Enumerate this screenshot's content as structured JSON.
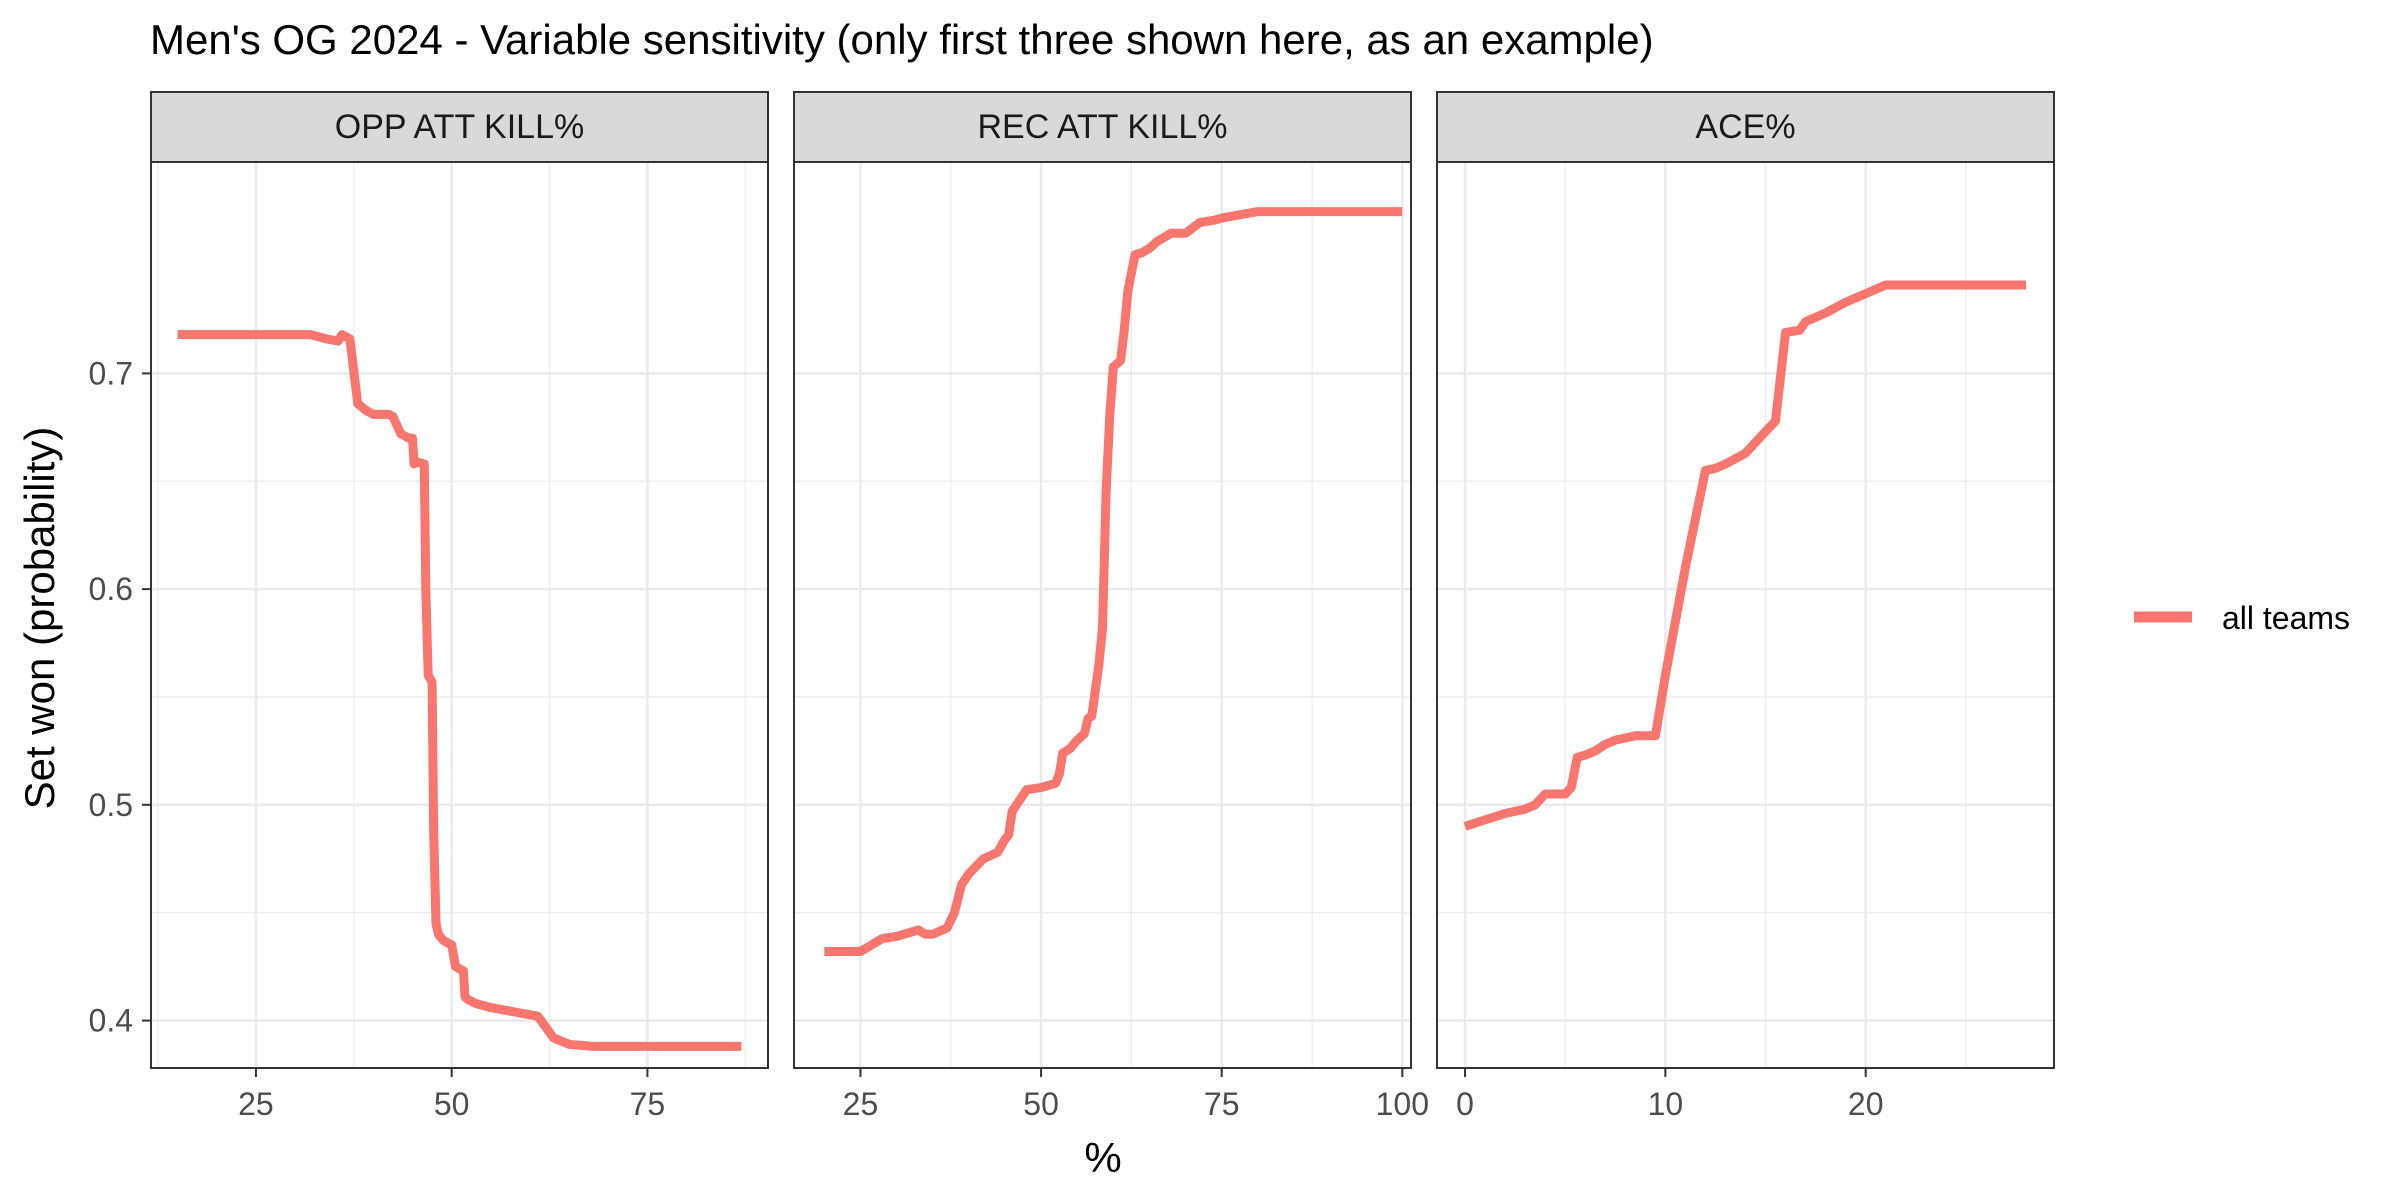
{
  "chart_data": {
    "type": "line",
    "title": "Men's OG 2024 - Variable sensitivity (only first three shown here, as an example)",
    "xlabel": "%",
    "ylabel": "Set won (probability)",
    "ylim": [
      0.378,
      0.798
    ],
    "y_ticks": [
      0.4,
      0.5,
      0.6,
      0.7
    ],
    "y_tick_labels": [
      "0.4",
      "0.5",
      "0.6",
      "0.7"
    ],
    "grid": true,
    "legend_position": "right",
    "series_color": "#F8766D",
    "series_name": "all teams",
    "panels": [
      {
        "strip": "OPP ATT KILL%",
        "xlim": [
          11.6,
          90.4
        ],
        "x_ticks": [
          25,
          50,
          75
        ],
        "x_tick_labels": [
          "25",
          "50",
          "75"
        ],
        "x": [
          15,
          20,
          25,
          30,
          32,
          34,
          35.5,
          36,
          37,
          38,
          39,
          40,
          42,
          42.5,
          43,
          43.5,
          44.5,
          45,
          45.2,
          45.5,
          46.5,
          46.7,
          47,
          47.5,
          47.7,
          48,
          48.3,
          48.5,
          49,
          50,
          50.5,
          51,
          51.5,
          51.7,
          52,
          53,
          55,
          58,
          61,
          63,
          65,
          68,
          70,
          75,
          80,
          87
        ],
        "y": [
          0.718,
          0.718,
          0.718,
          0.718,
          0.718,
          0.716,
          0.715,
          0.718,
          0.716,
          0.686,
          0.683,
          0.681,
          0.681,
          0.68,
          0.676,
          0.672,
          0.67,
          0.67,
          0.658,
          0.659,
          0.658,
          0.6,
          0.56,
          0.557,
          0.487,
          0.445,
          0.44,
          0.439,
          0.437,
          0.435,
          0.425,
          0.424,
          0.423,
          0.411,
          0.41,
          0.408,
          0.406,
          0.404,
          0.402,
          0.392,
          0.389,
          0.388,
          0.388,
          0.388,
          0.388,
          0.388
        ]
      },
      {
        "strip": "REC ATT KILL%",
        "xlim": [
          15.8,
          101.2
        ],
        "x_ticks": [
          25,
          50,
          75,
          100
        ],
        "x_tick_labels": [
          "25",
          "50",
          "75",
          "100"
        ],
        "x": [
          20,
          25,
          28,
          30,
          33,
          34,
          35,
          37,
          38,
          39,
          40,
          42,
          44,
          45,
          45.5,
          46,
          47,
          48,
          50,
          52,
          52.5,
          53,
          54,
          55,
          56,
          56.5,
          57,
          58,
          58.5,
          59,
          59.5,
          60,
          61,
          61.5,
          62,
          63,
          64,
          64.5,
          65,
          66,
          67,
          68,
          70,
          72,
          74,
          75,
          80,
          83,
          90,
          100
        ],
        "y": [
          0.432,
          0.432,
          0.438,
          0.439,
          0.442,
          0.44,
          0.44,
          0.443,
          0.45,
          0.463,
          0.468,
          0.475,
          0.478,
          0.484,
          0.486,
          0.497,
          0.502,
          0.507,
          0.508,
          0.51,
          0.514,
          0.524,
          0.526,
          0.53,
          0.533,
          0.54,
          0.541,
          0.565,
          0.582,
          0.645,
          0.68,
          0.703,
          0.706,
          0.72,
          0.738,
          0.755,
          0.756,
          0.757,
          0.758,
          0.761,
          0.763,
          0.765,
          0.765,
          0.77,
          0.771,
          0.772,
          0.775,
          0.775,
          0.775,
          0.775
        ]
      },
      {
        "strip": "ACE%",
        "xlim": [
          -1.4,
          29.4
        ],
        "x_ticks": [
          0,
          10,
          20
        ],
        "x_tick_labels": [
          "0",
          "10",
          "20"
        ],
        "x": [
          0,
          1,
          2,
          3,
          3.5,
          4,
          4.5,
          5,
          5.3,
          5.6,
          6,
          6.5,
          7,
          7.5,
          8,
          8.5,
          9,
          9.5,
          10,
          11,
          12,
          12.5,
          13,
          14,
          15,
          15.5,
          16,
          16.7,
          17,
          18,
          19,
          20,
          21,
          23,
          25,
          28
        ],
        "y": [
          0.49,
          0.493,
          0.496,
          0.498,
          0.5,
          0.505,
          0.505,
          0.505,
          0.508,
          0.522,
          0.523,
          0.525,
          0.528,
          0.53,
          0.531,
          0.532,
          0.532,
          0.532,
          0.56,
          0.61,
          0.655,
          0.656,
          0.658,
          0.663,
          0.673,
          0.678,
          0.719,
          0.72,
          0.724,
          0.728,
          0.733,
          0.737,
          0.741,
          0.741,
          0.741,
          0.741
        ]
      }
    ]
  }
}
